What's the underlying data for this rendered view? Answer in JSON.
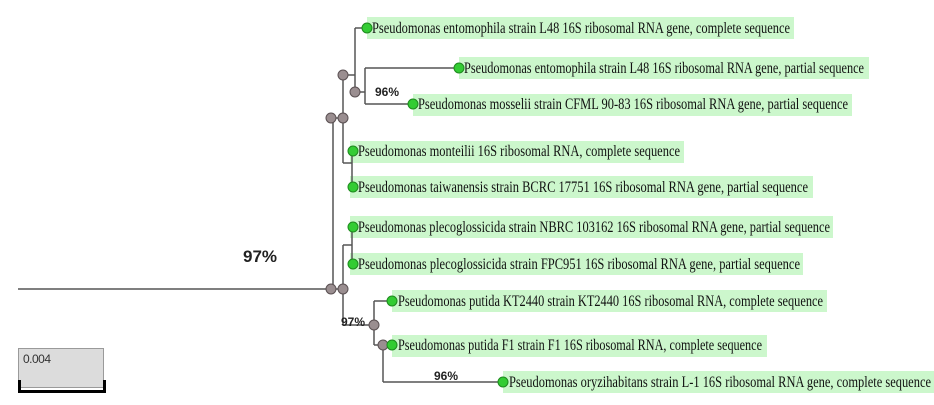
{
  "tree": {
    "leaves": [
      {
        "label": "Pseudomonas entomophila strain L48 16S ribosomal RNA gene, complete sequence"
      },
      {
        "label": "Pseudomonas entomophila strain L48 16S ribosomal RNA gene, partial sequence"
      },
      {
        "label": "Pseudomonas mosselii strain CFML 90-83 16S ribosomal RNA gene, partial sequence"
      },
      {
        "label": "Pseudomonas monteilii 16S ribosomal RNA, complete sequence"
      },
      {
        "label": "Pseudomonas taiwanensis strain BCRC 17751 16S ribosomal RNA gene, partial sequence"
      },
      {
        "label": "Pseudomonas plecoglossicida strain NBRC 103162 16S ribosomal RNA gene, partial sequence"
      },
      {
        "label": "Pseudomonas plecoglossicida strain FPC951 16S ribosomal RNA gene, partial sequence"
      },
      {
        "label": "Pseudomonas putida KT2440 strain KT2440 16S ribosomal RNA, complete sequence"
      },
      {
        "label": "Pseudomonas putida F1 strain F1 16S ribosomal RNA, complete sequence"
      },
      {
        "label": "Pseudomonas oryzihabitans strain L-1 16S ribosomal RNA gene, complete sequence"
      }
    ],
    "bootstrap": {
      "root": "97%",
      "mosselii_clade": "96%",
      "putida_clade": "97%",
      "oryzihabitans_clade": "96%"
    },
    "scale": "0.004",
    "colors": {
      "leaf_highlight": "#ccf7cc",
      "leaf_node": "#33cc33",
      "inner_node": "#9a8e90",
      "branch": "#555555"
    }
  }
}
